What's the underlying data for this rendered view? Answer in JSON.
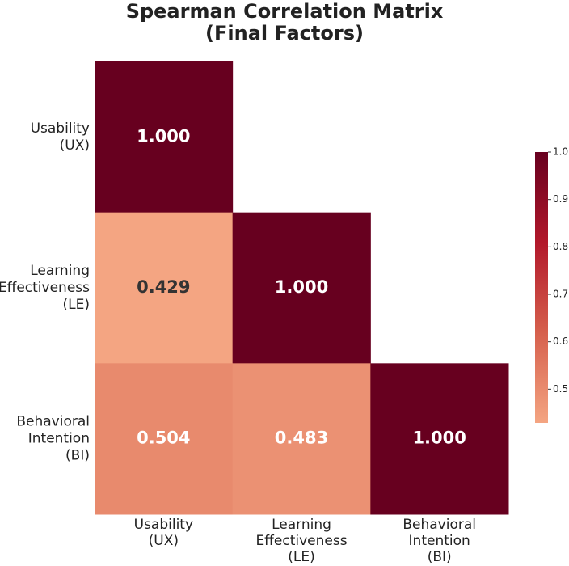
{
  "chart_data": {
    "type": "heatmap",
    "title": [
      "Spearman Correlation Matrix",
      "(Final Factors)"
    ],
    "x_categories": [
      [
        "Usability",
        "(UX)"
      ],
      [
        "Learning",
        "Effectiveness",
        "(LE)"
      ],
      [
        "Behavioral",
        "Intention",
        "(BI)"
      ]
    ],
    "y_categories": [
      [
        "Usability",
        "(UX)"
      ],
      [
        "Learning",
        "Effectiveness",
        "(LE)"
      ],
      [
        "Behavioral",
        "Intention",
        "(BI)"
      ]
    ],
    "values": [
      [
        1,
        null,
        null
      ],
      [
        0.429,
        1,
        null
      ],
      [
        0.504,
        0.483,
        1
      ]
    ],
    "value_labels": [
      [
        "1.000",
        null,
        null
      ],
      [
        "0.429",
        "1.000",
        null
      ],
      [
        "0.504",
        "0.483",
        "1.000"
      ]
    ],
    "clim": [
      0.429,
      1
    ],
    "colorbar_ticks": [
      0.5,
      0.6,
      0.7,
      0.8,
      0.9,
      {
        "value": 1,
        "label": "1.0"
      }
    ],
    "colormap": [
      "#f4a582",
      "#d6604d",
      "#b2182b",
      "#67001f"
    ]
  }
}
